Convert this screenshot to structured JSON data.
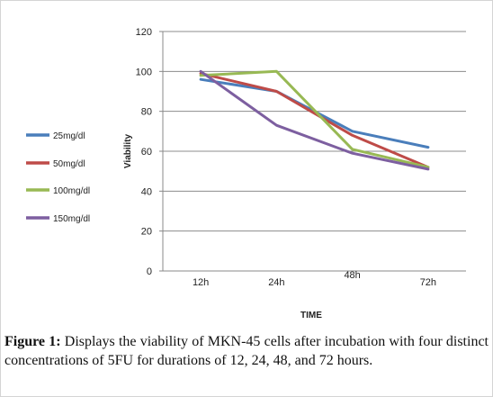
{
  "chart_data": {
    "type": "line",
    "title": "",
    "xlabel": "TIME",
    "ylabel": "Viability",
    "categories": [
      "12h",
      "24h",
      "48h",
      "72h"
    ],
    "ylim": [
      0,
      120
    ],
    "yticks": [
      0,
      20,
      40,
      60,
      80,
      100,
      120
    ],
    "grid": "horizontal",
    "legend_position": "left",
    "series": [
      {
        "name": "25mg/dl",
        "color": "#4a7ebb",
        "values": [
          96,
          90,
          70,
          62
        ]
      },
      {
        "name": "50mg/dl",
        "color": "#be4b48",
        "values": [
          99,
          90,
          68,
          52
        ]
      },
      {
        "name": "100mg/dl",
        "color": "#98b954",
        "values": [
          98,
          100,
          61,
          52
        ]
      },
      {
        "name": "150mg/dl",
        "color": "#7d5fa0",
        "values": [
          100,
          73,
          59,
          51
        ]
      }
    ]
  },
  "caption": {
    "label": "Figure 1:",
    "text": " Displays the viability of MKN-45 cells after incubation with four distinct concentrations of 5FU for durations of 12, 24, 48, and 72 hours."
  }
}
